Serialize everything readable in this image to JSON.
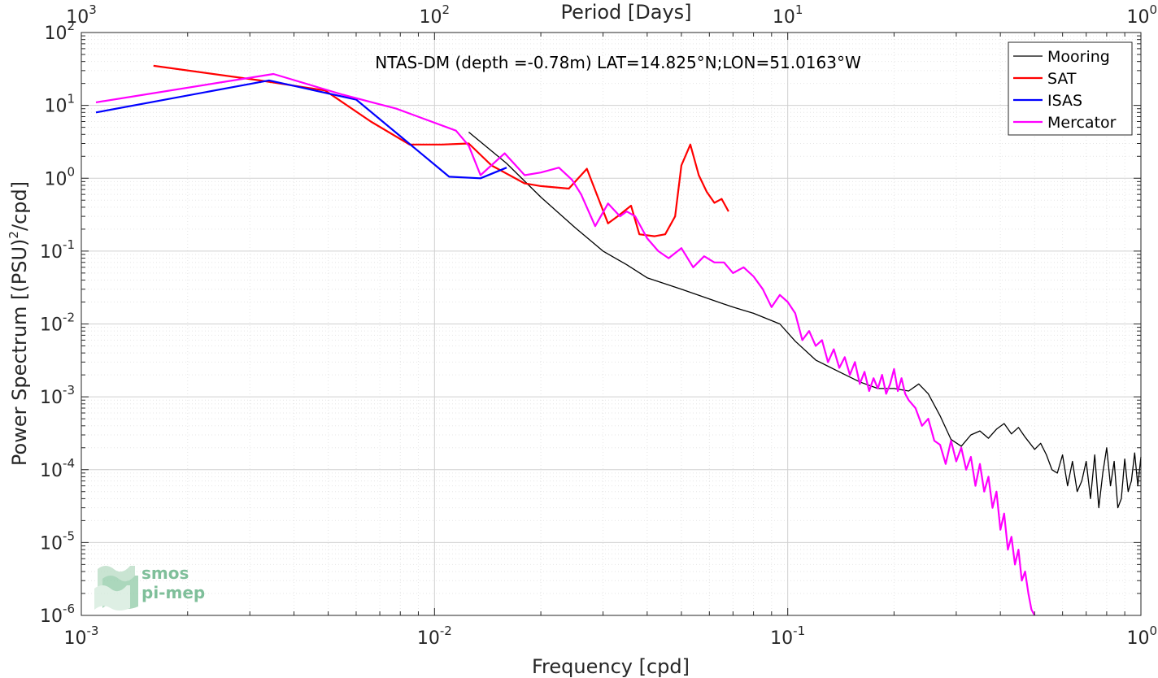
{
  "chart_data": {
    "type": "line",
    "title": "NTAS-DM (depth =-0.78m) LAT=14.825°N;LON=51.0163°W",
    "xlabel": "Frequency [cpd]",
    "ylabel_main": "Power Spectrum [(PSU)",
    "ylabel_sup": "2",
    "ylabel_tail": "/cpd]",
    "top_xlabel": "Period [Days]",
    "x_scale": "log",
    "y_scale": "log",
    "xlim": [
      0.001,
      1
    ],
    "ylim": [
      1e-06,
      100
    ],
    "grid": true,
    "legend_position": "top-right",
    "x_ticks": [
      {
        "value": 0.001,
        "base": "10",
        "exp": "-3"
      },
      {
        "value": 0.01,
        "base": "10",
        "exp": "-2"
      },
      {
        "value": 0.1,
        "base": "10",
        "exp": "-1"
      },
      {
        "value": 1,
        "base": "10",
        "exp": "0"
      }
    ],
    "top_ticks": [
      {
        "value": 0.001,
        "base": "10",
        "exp": "3"
      },
      {
        "value": 0.01,
        "base": "10",
        "exp": "2"
      },
      {
        "value": 0.1,
        "base": "10",
        "exp": "1"
      },
      {
        "value": 1,
        "base": "10",
        "exp": "0"
      }
    ],
    "y_ticks": [
      {
        "value": 100,
        "base": "10",
        "exp": "2"
      },
      {
        "value": 10,
        "base": "10",
        "exp": "1"
      },
      {
        "value": 1,
        "base": "10",
        "exp": "0"
      },
      {
        "value": 0.1,
        "base": "10",
        "exp": "-1"
      },
      {
        "value": 0.01,
        "base": "10",
        "exp": "-2"
      },
      {
        "value": 0.001,
        "base": "10",
        "exp": "-3"
      },
      {
        "value": 0.0001,
        "base": "10",
        "exp": "-4"
      },
      {
        "value": 1e-05,
        "base": "10",
        "exp": "-5"
      },
      {
        "value": 1e-06,
        "base": "10",
        "exp": "-6"
      }
    ],
    "series": [
      {
        "name": "Mooring",
        "color": "#000000",
        "width": 1.3,
        "x": [
          0.0125,
          0.016,
          0.02,
          0.025,
          0.03,
          0.035,
          0.04,
          0.05,
          0.06,
          0.07,
          0.08,
          0.095,
          0.105,
          0.12,
          0.14,
          0.16,
          0.18,
          0.2,
          0.22,
          0.235,
          0.25,
          0.27,
          0.29,
          0.31,
          0.33,
          0.35,
          0.37,
          0.39,
          0.41,
          0.43,
          0.45,
          0.47,
          0.5,
          0.52,
          0.54,
          0.56,
          0.58,
          0.6,
          0.62,
          0.64,
          0.66,
          0.68,
          0.7,
          0.72,
          0.74,
          0.76,
          0.78,
          0.8,
          0.82,
          0.84,
          0.86,
          0.88,
          0.9,
          0.92,
          0.94,
          0.96,
          0.98,
          1.0
        ],
        "y": [
          4.3,
          1.6,
          0.55,
          0.21,
          0.1,
          0.065,
          0.043,
          0.03,
          0.022,
          0.017,
          0.014,
          0.01,
          0.0058,
          0.0032,
          0.0022,
          0.0016,
          0.0013,
          0.0013,
          0.0012,
          0.0015,
          0.0011,
          0.00055,
          0.00026,
          0.00021,
          0.0003,
          0.00034,
          0.00027,
          0.00036,
          0.00043,
          0.00031,
          0.00038,
          0.00028,
          0.00019,
          0.00023,
          0.00016,
          0.0001,
          9e-05,
          0.00016,
          6e-05,
          0.00013,
          5e-05,
          7e-05,
          0.00013,
          4e-05,
          0.00016,
          3e-05,
          9e-05,
          0.0002,
          6e-05,
          0.00013,
          3e-05,
          4e-05,
          0.00014,
          5e-05,
          7e-05,
          0.00017,
          6e-05,
          0.00015
        ]
      },
      {
        "name": "SAT",
        "color": "#ff0000",
        "width": 2.2,
        "x": [
          0.0016,
          0.0032,
          0.0049,
          0.0066,
          0.0085,
          0.0105,
          0.0125,
          0.0145,
          0.018,
          0.02,
          0.024,
          0.027,
          0.029,
          0.031,
          0.033,
          0.036,
          0.038,
          0.042,
          0.045,
          0.048,
          0.05,
          0.053,
          0.056,
          0.059,
          0.062,
          0.065,
          0.068
        ],
        "y": [
          35,
          22,
          16,
          6,
          2.9,
          2.9,
          3,
          1.5,
          0.85,
          0.78,
          0.72,
          1.35,
          0.55,
          0.24,
          0.3,
          0.42,
          0.17,
          0.16,
          0.17,
          0.3,
          1.5,
          2.9,
          1.1,
          0.65,
          0.46,
          0.52,
          0.35
        ]
      },
      {
        "name": "ISAS",
        "color": "#0000ff",
        "width": 2.2,
        "x": [
          0.0011,
          0.0034,
          0.006,
          0.011,
          0.0135,
          0.016
        ],
        "y": [
          8,
          22,
          12,
          1.05,
          1.0,
          1.4
        ]
      },
      {
        "name": "Mercator",
        "color": "#ff00ff",
        "width": 2.2,
        "x": [
          0.0011,
          0.0035,
          0.0055,
          0.0078,
          0.0115,
          0.0125,
          0.0135,
          0.0158,
          0.018,
          0.02,
          0.0225,
          0.0245,
          0.026,
          0.0285,
          0.031,
          0.0335,
          0.035,
          0.037,
          0.04,
          0.043,
          0.046,
          0.05,
          0.054,
          0.058,
          0.062,
          0.066,
          0.07,
          0.075,
          0.08,
          0.085,
          0.09,
          0.095,
          0.1,
          0.105,
          0.11,
          0.115,
          0.12,
          0.125,
          0.13,
          0.135,
          0.14,
          0.145,
          0.15,
          0.155,
          0.16,
          0.165,
          0.17,
          0.175,
          0.18,
          0.185,
          0.19,
          0.195,
          0.2,
          0.205,
          0.21,
          0.215,
          0.22,
          0.23,
          0.24,
          0.25,
          0.26,
          0.27,
          0.28,
          0.29,
          0.3,
          0.31,
          0.32,
          0.33,
          0.34,
          0.35,
          0.36,
          0.37,
          0.38,
          0.39,
          0.4,
          0.41,
          0.42,
          0.43,
          0.44,
          0.45,
          0.46,
          0.47,
          0.48,
          0.49,
          0.5
        ],
        "y": [
          11,
          27,
          14,
          9,
          4.5,
          2.8,
          1.1,
          2.2,
          1.1,
          1.2,
          1.4,
          0.95,
          0.6,
          0.22,
          0.45,
          0.3,
          0.35,
          0.3,
          0.15,
          0.1,
          0.08,
          0.11,
          0.06,
          0.085,
          0.07,
          0.07,
          0.05,
          0.06,
          0.045,
          0.03,
          0.017,
          0.025,
          0.02,
          0.014,
          0.006,
          0.008,
          0.005,
          0.006,
          0.003,
          0.0045,
          0.0025,
          0.0035,
          0.002,
          0.003,
          0.0015,
          0.0022,
          0.0012,
          0.0018,
          0.0013,
          0.002,
          0.0011,
          0.0015,
          0.0024,
          0.0012,
          0.0018,
          0.0011,
          0.0009,
          0.0007,
          0.0004,
          0.0005,
          0.00025,
          0.00022,
          0.00012,
          0.00025,
          0.00013,
          0.0002,
          0.0001,
          0.00015,
          6e-05,
          0.00012,
          5e-05,
          8e-05,
          3e-05,
          5e-05,
          1.5e-05,
          2.5e-05,
          8e-06,
          1.2e-05,
          5e-06,
          8e-06,
          3e-06,
          4e-06,
          2e-06,
          1.2e-06,
          1e-06
        ]
      }
    ],
    "logo": {
      "line1": "smos",
      "line2": "pi-mep"
    }
  }
}
